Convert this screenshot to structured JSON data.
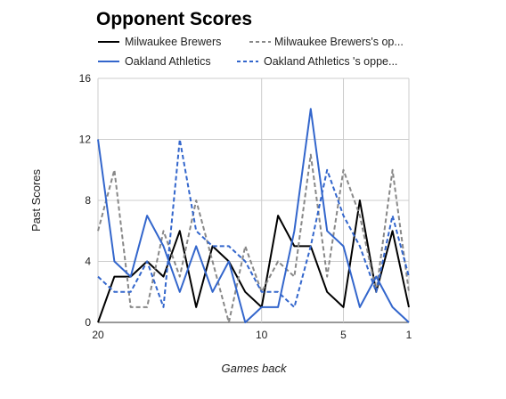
{
  "chart_data": {
    "type": "line",
    "title": "Opponent Scores",
    "xlabel": "Games back",
    "ylabel": "Past Scores",
    "x": [
      20,
      19,
      18,
      17,
      16,
      15,
      14,
      13,
      12,
      11,
      10,
      9,
      8,
      7,
      6,
      5,
      4,
      3,
      2,
      1
    ],
    "xlim": [
      20,
      1
    ],
    "xticks": [
      "20",
      "10",
      "5",
      "1"
    ],
    "ylim": [
      0,
      16
    ],
    "yticks": [
      "0",
      "4",
      "8",
      "12",
      "16"
    ],
    "grid": true,
    "legend_position": "top",
    "series": [
      {
        "name": "Milwaukee Brewers",
        "color": "#000000",
        "dash": "solid",
        "values": [
          0,
          3,
          3,
          4,
          3,
          6,
          1,
          5,
          4,
          2,
          1,
          7,
          5,
          5,
          2,
          1,
          8,
          2,
          6,
          1
        ]
      },
      {
        "name": "Milwaukee Brewers's op...",
        "color": "#888888",
        "dash": "dashed",
        "values": [
          6,
          10,
          1,
          1,
          6,
          3,
          8,
          4,
          0,
          5,
          2,
          4,
          3,
          11,
          3,
          10,
          7,
          2,
          10,
          2
        ]
      },
      {
        "name": "Oakland Athletics",
        "color": "#3366cc",
        "dash": "solid",
        "values": [
          12,
          4,
          3,
          7,
          5,
          2,
          5,
          2,
          4,
          0,
          1,
          1,
          6,
          14,
          6,
          5,
          1,
          3,
          1,
          0
        ]
      },
      {
        "name": "Oakland Athletics 's oppe...",
        "color": "#3366cc",
        "dash": "dashed",
        "values": [
          3,
          2,
          2,
          4,
          1,
          12,
          6,
          5,
          5,
          4,
          2,
          2,
          1,
          5,
          10,
          7,
          5,
          2,
          7,
          3
        ]
      }
    ]
  }
}
